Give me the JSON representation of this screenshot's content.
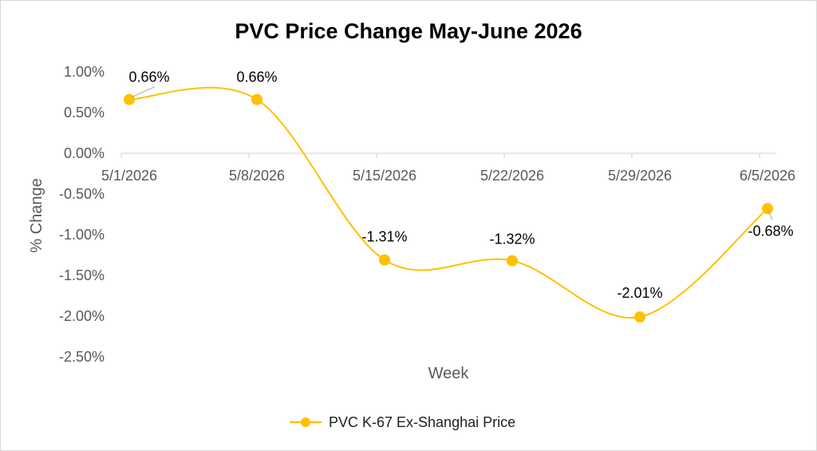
{
  "chart_data": {
    "type": "line",
    "title": "PVC Price Change May-June 2026",
    "xlabel": "Week",
    "ylabel": "% Change",
    "categories": [
      "5/1/2026",
      "5/8/2026",
      "5/15/2026",
      "5/22/2026",
      "5/29/2026",
      "6/5/2026"
    ],
    "series": [
      {
        "name": "PVC K-67 Ex-Shanghai Price",
        "values": [
          0.66,
          0.66,
          -1.31,
          -1.32,
          -2.01,
          -0.68
        ],
        "data_labels": [
          "0.66%",
          "0.66%",
          "-1.31%",
          "-1.32%",
          "-2.01%",
          "-0.68%"
        ],
        "color": "#FFC000",
        "smooth": true,
        "marker": "circle"
      }
    ],
    "y_ticks": [
      "1.00%",
      "0.50%",
      "0.00%",
      "-0.50%",
      "-1.00%",
      "-1.50%",
      "-2.00%",
      "-2.50%"
    ],
    "ylim": [
      -2.5,
      1.0
    ],
    "grid": false,
    "legend": "bottom"
  }
}
